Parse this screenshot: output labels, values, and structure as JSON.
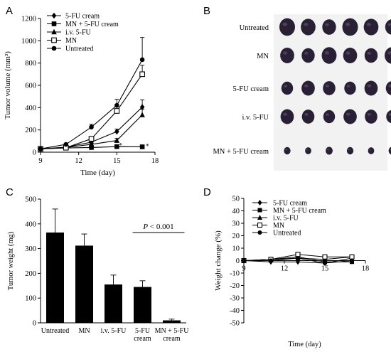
{
  "colors": {
    "ink": "#000000",
    "photo_bg": "#f2f2f2",
    "tumor": "#2a2036"
  },
  "panels": {
    "a": "A",
    "b": "B",
    "c": "C",
    "d": "D"
  },
  "photo": {
    "rows": [
      "Untreated",
      "MN",
      "5-FU cream",
      "i.v. 5-FU",
      "MN + 5-FU cream"
    ],
    "tumor_counts": [
      6,
      6,
      6,
      6,
      6
    ]
  },
  "chart_data": [
    {
      "panel": "A",
      "type": "line",
      "xlabel": "Time (day)",
      "ylabel": "Tumor volume (mm³)",
      "xlim": [
        9,
        18
      ],
      "ylim": [
        0,
        1200
      ],
      "xticks": [
        9,
        12,
        15,
        18
      ],
      "yticks": [
        0,
        200,
        400,
        600,
        800,
        1000,
        1200
      ],
      "legend_position": "top-left",
      "series": [
        {
          "name": "5-FU cream",
          "marker": "diamond",
          "x": [
            9,
            11,
            13,
            15,
            17
          ],
          "y": [
            30,
            45,
            90,
            185,
            405
          ],
          "err": [
            0,
            5,
            12,
            22,
            65
          ]
        },
        {
          "name": "MN + 5-FU cream",
          "marker": "square-filled",
          "x": [
            9,
            11,
            13,
            15,
            17
          ],
          "y": [
            30,
            38,
            42,
            50,
            48
          ],
          "err": [
            0,
            4,
            4,
            6,
            6
          ]
        },
        {
          "name": "i.v. 5-FU",
          "marker": "triangle",
          "x": [
            9,
            11,
            13,
            15,
            17
          ],
          "y": [
            30,
            42,
            70,
            105,
            335
          ],
          "err": [
            0,
            5,
            10,
            18,
            50
          ]
        },
        {
          "name": "MN",
          "marker": "square-open",
          "x": [
            9,
            11,
            13,
            15,
            17
          ],
          "y": [
            30,
            40,
            120,
            370,
            700
          ],
          "err": [
            0,
            6,
            15,
            40,
            80
          ]
        },
        {
          "name": "Untreated",
          "marker": "circle",
          "x": [
            9,
            11,
            13,
            15,
            17
          ],
          "y": [
            30,
            70,
            225,
            420,
            830
          ],
          "err": [
            0,
            8,
            25,
            55,
            200
          ]
        }
      ],
      "annotations": [
        {
          "text": "*",
          "x": 15.3,
          "y": 60
        },
        {
          "text": "*",
          "x": 17.4,
          "y": 55
        }
      ]
    },
    {
      "panel": "C",
      "type": "bar",
      "ylabel": "Tumor weight (mg)",
      "ylim": [
        0,
        500
      ],
      "yticks": [
        0,
        100,
        200,
        300,
        400,
        500
      ],
      "categories": [
        "Untreated",
        "MN",
        "i.v. 5-FU",
        "5-FU\ncream",
        "MN + 5-FU\ncream"
      ],
      "values": [
        365,
        312,
        155,
        145,
        10
      ],
      "errors": [
        95,
        47,
        38,
        25,
        5
      ],
      "annotation": {
        "text": "P < 0.001",
        "from": 3,
        "to": 4,
        "y": 365
      }
    },
    {
      "panel": "D",
      "type": "line",
      "xlabel": "Time (day)",
      "ylabel": "Weight change (%)",
      "xlim": [
        9,
        18
      ],
      "ylim": [
        -50,
        50
      ],
      "xticks": [
        9,
        12,
        15,
        18
      ],
      "yticks": [
        -50,
        -40,
        -30,
        -20,
        -10,
        0,
        10,
        20,
        30,
        40,
        50
      ],
      "legend_position": "top-right",
      "series": [
        {
          "name": "5-FU cream",
          "marker": "diamond",
          "x": [
            9,
            11,
            13,
            15,
            17
          ],
          "y": [
            0,
            -1,
            -1,
            -2,
            2
          ]
        },
        {
          "name": "MN + 5-FU cream",
          "marker": "square-filled",
          "x": [
            9,
            11,
            13,
            15,
            17
          ],
          "y": [
            0,
            1,
            3,
            -1,
            -1
          ]
        },
        {
          "name": "i.v. 5-FU",
          "marker": "triangle",
          "x": [
            9,
            11,
            13,
            15,
            17
          ],
          "y": [
            0,
            1,
            2,
            1,
            3
          ]
        },
        {
          "name": "MN",
          "marker": "square-open",
          "x": [
            9,
            11,
            13,
            15,
            17
          ],
          "y": [
            0,
            1,
            5,
            3,
            3
          ]
        },
        {
          "name": "Untreated",
          "marker": "circle",
          "x": [
            9,
            11,
            13,
            15,
            17
          ],
          "y": [
            0,
            0,
            2,
            -2,
            0
          ]
        }
      ]
    }
  ]
}
